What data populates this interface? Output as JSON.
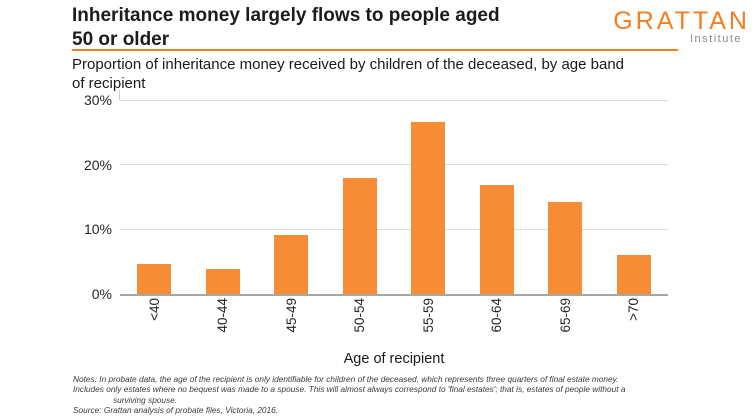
{
  "header": {
    "title": "Inheritance money largely flows to people aged 50 or older",
    "title_lines": [
      "Inheritance money largely flows to people aged",
      "50 or older"
    ],
    "logo": {
      "brand": "GRATTAN",
      "sub": "Institute"
    }
  },
  "subtitle": "Proportion of inheritance money received by children of the deceased, by age band of recipient",
  "subtitle_lines": [
    "Proportion of inheritance money received by children of the deceased, by age band",
    "of recipient"
  ],
  "chart_data": {
    "type": "bar",
    "title": "Inheritance money largely flows to people aged 50 or older",
    "subtitle": "Proportion of inheritance money received by children of the deceased, by age band of recipient",
    "categories": [
      "<40",
      "40-44",
      "45-49",
      "50-54",
      "55-59",
      "60-64",
      "65-69",
      ">70"
    ],
    "values": [
      4.7,
      3.9,
      9.1,
      18.0,
      26.6,
      16.9,
      14.2,
      6.0
    ],
    "xlabel": "Age of recipient",
    "ylabel": "",
    "ylim": [
      0,
      30
    ],
    "yticks": [
      {
        "value": 0,
        "label": "0%"
      },
      {
        "value": 10,
        "label": "10%"
      },
      {
        "value": 20,
        "label": "20%"
      },
      {
        "value": 30,
        "label": "30%"
      }
    ],
    "grid": true,
    "legend": false,
    "bar_color": "#F68C35"
  },
  "colors": {
    "accent_orange": "#F68C35",
    "logo_orange": "#F47E20",
    "gridline_gray": "#DCDCDC",
    "axis_gray": "#A6A6A6",
    "institute_gray": "#8A8A8A"
  },
  "notes": {
    "lines": [
      {
        "text": "Notes: In probate data, the age of the recipient is only identifiable for children of the deceased, which represents three quarters of final estate money.",
        "indent": 0
      },
      {
        "text": "Includes only estates where no bequest was made to a spouse. This will almost always correspond to 'final estates'; that is, estates of people without a",
        "indent": 0
      },
      {
        "text": "surviving spouse.",
        "indent": 40
      },
      {
        "text": "Source: Grattan analysis of probate files, Victoria, 2016.",
        "indent": 0
      }
    ]
  }
}
